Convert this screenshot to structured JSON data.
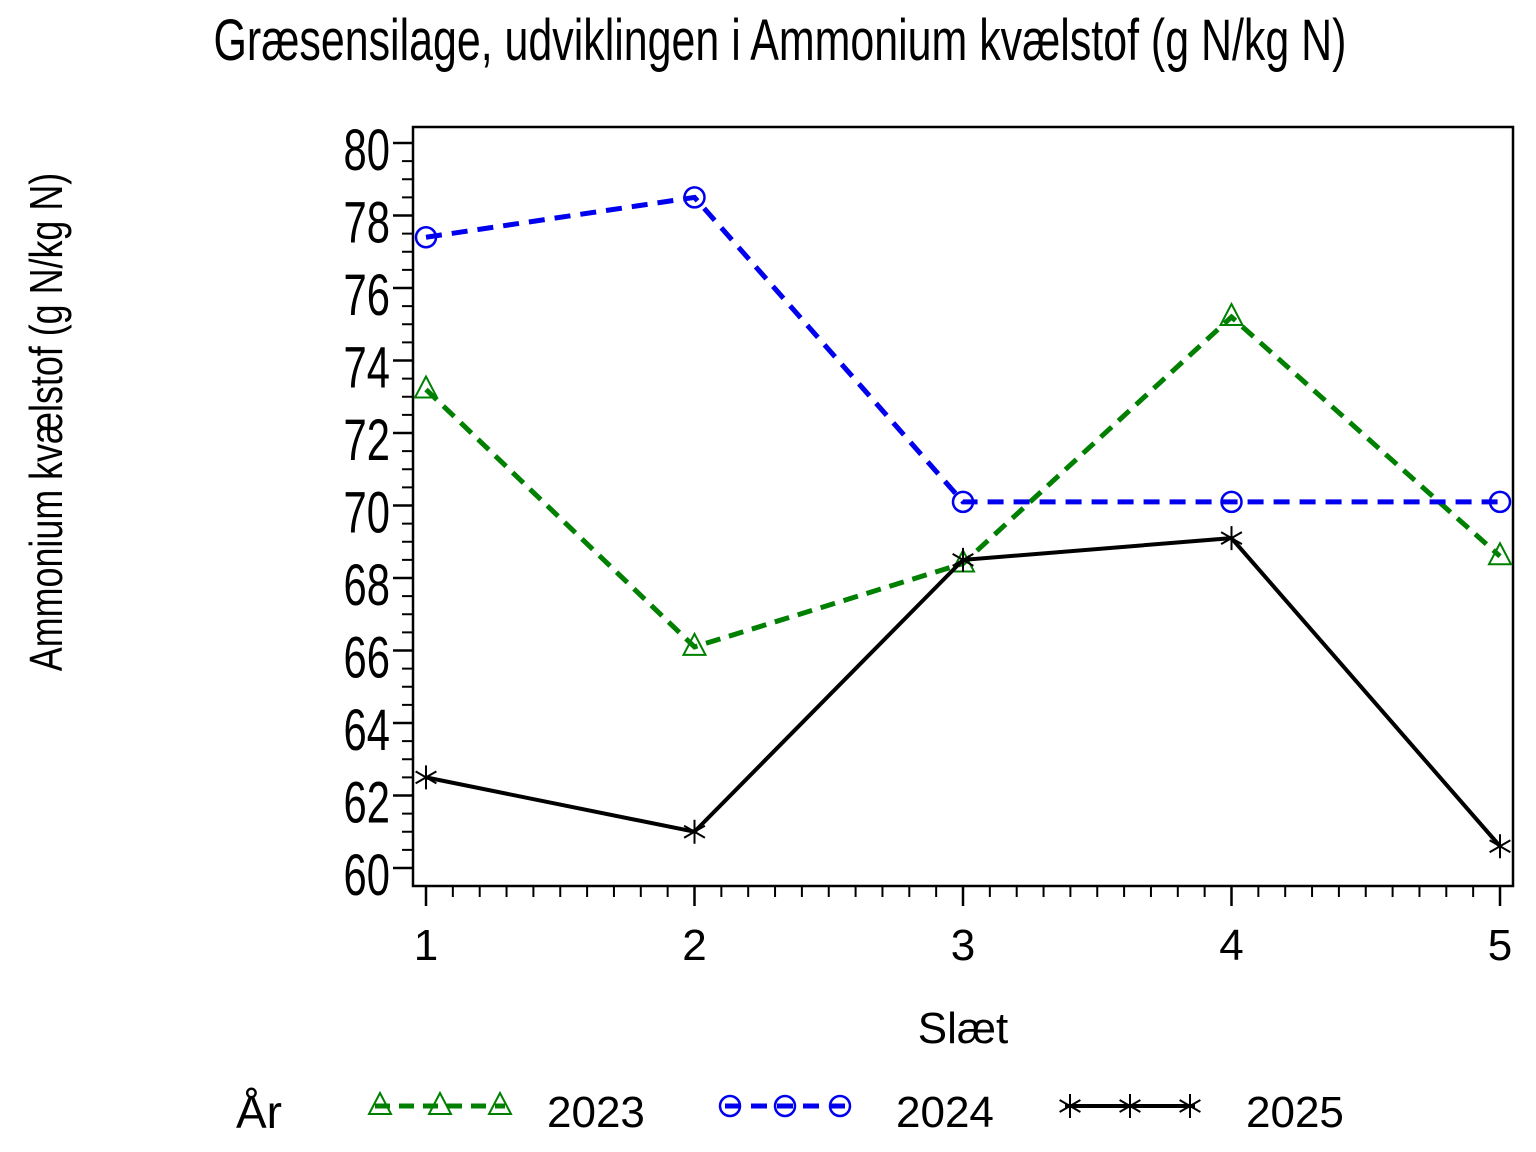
{
  "chart_data": {
    "type": "line",
    "title": "Græsensilage, udviklingen i Ammonium kvælstof (g N/kg N)",
    "xlabel": "Slæt",
    "ylabel": "Ammonium kvælstof (g N/kg N)",
    "legend_title": "År",
    "legend_position": "bottom",
    "grid": false,
    "x": [
      1,
      2,
      3,
      4,
      5
    ],
    "xlim": [
      0.95,
      5.05
    ],
    "ylim": [
      59.5,
      80.5
    ],
    "y_major_ticks": [
      60,
      62,
      64,
      66,
      68,
      70,
      72,
      74,
      76,
      78,
      80
    ],
    "y_minor_tick_step": 0.5,
    "x_minor_tick_step": 0.1,
    "series": [
      {
        "name": "2023",
        "color": "#008000",
        "line_style": "dashed",
        "marker": "triangle",
        "values": [
          73.2,
          66.1,
          68.4,
          75.2,
          68.6
        ]
      },
      {
        "name": "2024",
        "color": "#0000ee",
        "line_style": "dashed",
        "marker": "circle",
        "values": [
          77.4,
          78.5,
          70.1,
          70.1,
          70.1
        ]
      },
      {
        "name": "2025",
        "color": "#000000",
        "line_style": "solid",
        "marker": "asterisk",
        "values": [
          62.5,
          61.0,
          68.5,
          69.1,
          60.6
        ]
      }
    ]
  }
}
